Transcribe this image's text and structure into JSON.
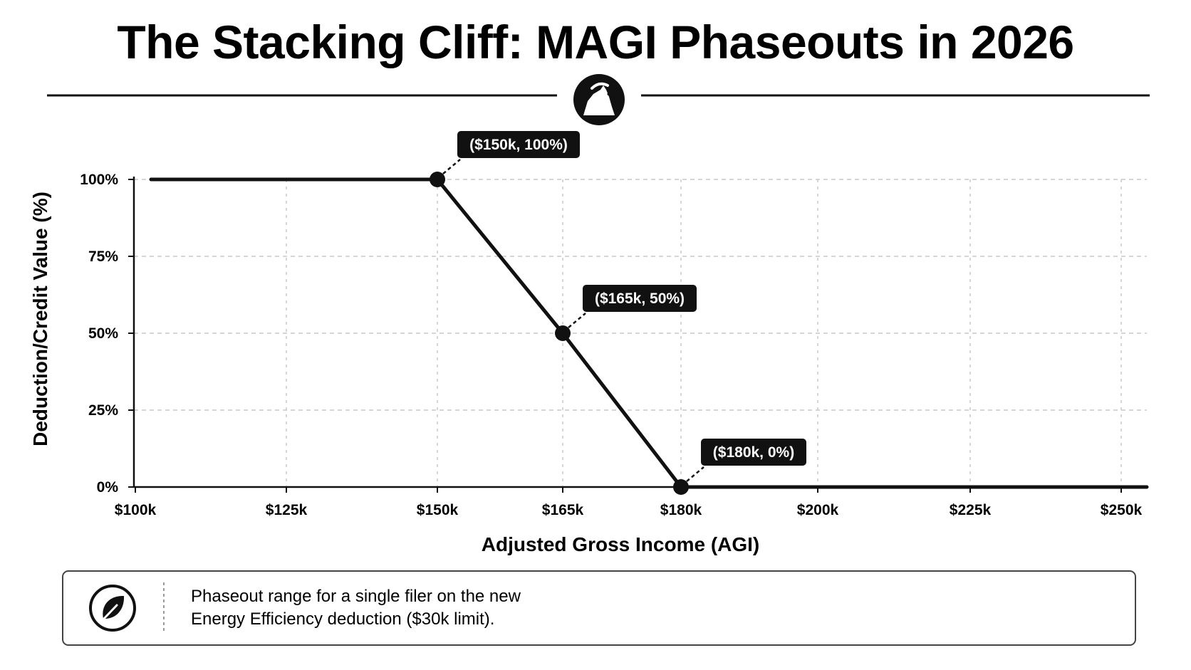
{
  "page": {
    "title": "The Stacking Cliff: MAGI Phaseouts in 2026",
    "title_icon": "cliff-icon",
    "note": {
      "icon": "leaf-icon",
      "line1": "Phaseout range for a single filer on the new",
      "line2": "Energy Efficiency deduction ($30k limit)."
    }
  },
  "chart_data": {
    "type": "line",
    "title": "The Stacking Cliff: MAGI Phaseouts in 2026",
    "xlabel": "Adjusted Gross Income (AGI)",
    "ylabel": "Deduction/Credit Value (%)",
    "x_ticks": [
      {
        "value": 100000,
        "label": "$100k"
      },
      {
        "value": 125000,
        "label": "$125k"
      },
      {
        "value": 150000,
        "label": "$150k"
      },
      {
        "value": 165000,
        "label": "$165k"
      },
      {
        "value": 180000,
        "label": "$180k"
      },
      {
        "value": 200000,
        "label": "$200k"
      },
      {
        "value": 225000,
        "label": "$225k"
      },
      {
        "value": 250000,
        "label": "$250k"
      }
    ],
    "y_ticks": [
      {
        "value": 0,
        "label": "0%"
      },
      {
        "value": 25,
        "label": "25%"
      },
      {
        "value": 50,
        "label": "50%"
      },
      {
        "value": 75,
        "label": "75%"
      },
      {
        "value": 100,
        "label": "100%"
      }
    ],
    "ylim": [
      0,
      100
    ],
    "grid": true,
    "series": [
      {
        "x": [
          100000,
          150000,
          165000,
          180000,
          250000
        ],
        "y": [
          100,
          100,
          50,
          0,
          0
        ]
      }
    ],
    "markers": [
      {
        "x": 150000,
        "y": 100,
        "label": "($150k, 100%)"
      },
      {
        "x": 165000,
        "y": 50,
        "label": "($165k, 50%)"
      },
      {
        "x": 180000,
        "y": 0,
        "label": "($180k, 0%)"
      }
    ],
    "colors": {
      "line": "#111111",
      "grid": "#c8c8c8",
      "callout_bg": "#111111",
      "callout_text": "#ffffff"
    }
  }
}
